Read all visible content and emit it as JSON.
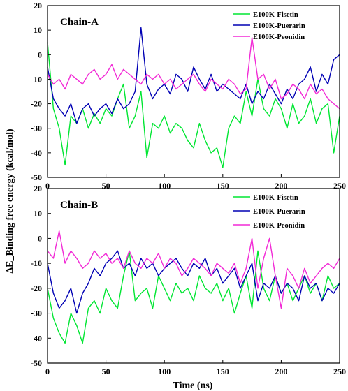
{
  "figure": {
    "ylabel": "ΔE_Binding free energy (kcal/mol)",
    "xlabel": "Time (ns)"
  },
  "chart_data": [
    {
      "type": "line",
      "panel_label": "Chain-A",
      "xlim": [
        0,
        250
      ],
      "ylim": [
        -50,
        20
      ],
      "x_ticks": [
        "0",
        "50",
        "100",
        "150",
        "200",
        "250"
      ],
      "y_ticks": [
        "-50",
        "-40",
        "-30",
        "-20",
        "-10",
        "0",
        "10",
        "20"
      ],
      "legend_position": "top-right",
      "series": [
        {
          "name": "E100K-Fisetin",
          "color": "#00e632",
          "x": [
            0,
            5,
            10,
            15,
            20,
            25,
            30,
            35,
            40,
            45,
            50,
            55,
            60,
            65,
            70,
            75,
            80,
            85,
            90,
            95,
            100,
            105,
            110,
            115,
            120,
            125,
            130,
            135,
            140,
            145,
            150,
            155,
            160,
            165,
            170,
            175,
            180,
            185,
            190,
            195,
            200,
            205,
            210,
            215,
            220,
            225,
            230,
            235,
            240,
            245,
            250
          ],
          "values": [
            5,
            -22,
            -30,
            -45,
            -25,
            -28,
            -22,
            -30,
            -24,
            -28,
            -22,
            -25,
            -18,
            -12,
            -30,
            -25,
            -15,
            -42,
            -28,
            -30,
            -25,
            -32,
            -28,
            -30,
            -35,
            -38,
            -28,
            -35,
            -40,
            -38,
            -46,
            -30,
            -25,
            -28,
            -15,
            -25,
            -10,
            -22,
            -25,
            -18,
            -22,
            -30,
            -20,
            -28,
            -25,
            -18,
            -28,
            -22,
            -20,
            -40,
            -25
          ]
        },
        {
          "name": "E100K-Puerarin",
          "color": "#0000b4",
          "x": [
            0,
            5,
            10,
            15,
            20,
            25,
            30,
            35,
            40,
            45,
            50,
            55,
            60,
            65,
            70,
            75,
            80,
            85,
            90,
            95,
            100,
            105,
            110,
            115,
            120,
            125,
            130,
            135,
            140,
            145,
            150,
            155,
            160,
            165,
            170,
            175,
            180,
            185,
            190,
            195,
            200,
            205,
            210,
            215,
            220,
            225,
            230,
            235,
            240,
            245,
            250
          ],
          "values": [
            -5,
            -18,
            -22,
            -25,
            -20,
            -28,
            -22,
            -20,
            -25,
            -22,
            -20,
            -24,
            -18,
            -22,
            -20,
            -15,
            11,
            -12,
            -18,
            -14,
            -12,
            -16,
            -8,
            -10,
            -15,
            -5,
            -10,
            -14,
            -8,
            -15,
            -12,
            -14,
            -16,
            -18,
            -12,
            -20,
            -15,
            -18,
            -12,
            -16,
            -20,
            -14,
            -18,
            -12,
            -10,
            -5,
            -15,
            -8,
            -12,
            -2,
            0
          ]
        },
        {
          "name": "E100K-Peonidin",
          "color": "#f22ad6",
          "x": [
            0,
            5,
            10,
            15,
            20,
            25,
            30,
            35,
            40,
            45,
            50,
            55,
            60,
            65,
            70,
            75,
            80,
            85,
            90,
            95,
            100,
            105,
            110,
            115,
            120,
            125,
            130,
            135,
            140,
            145,
            150,
            155,
            160,
            165,
            170,
            175,
            180,
            185,
            190,
            195,
            200,
            205,
            210,
            215,
            220,
            225,
            230,
            235,
            240,
            245,
            250
          ],
          "values": [
            -8,
            -12,
            -10,
            -14,
            -8,
            -10,
            -12,
            -8,
            -6,
            -10,
            -8,
            -4,
            -10,
            -6,
            -8,
            -10,
            -12,
            -8,
            -10,
            -8,
            -12,
            -10,
            -14,
            -12,
            -10,
            -8,
            -12,
            -15,
            -10,
            -12,
            -14,
            -10,
            -12,
            -16,
            -14,
            7,
            -10,
            -8,
            -14,
            -10,
            -18,
            -16,
            -12,
            -14,
            -18,
            -12,
            -16,
            -14,
            -18,
            -20,
            -22
          ]
        }
      ]
    },
    {
      "type": "line",
      "panel_label": "Chain-B",
      "xlim": [
        0,
        250
      ],
      "ylim": [
        -50,
        20
      ],
      "x_ticks": [
        "0",
        "50",
        "100",
        "150",
        "200",
        "250"
      ],
      "y_ticks": [
        "-50",
        "-40",
        "-30",
        "-20",
        "-10",
        "0",
        "10",
        "20"
      ],
      "legend_position": "top-right",
      "series": [
        {
          "name": "E100K-Fisetin",
          "color": "#00e632",
          "x": [
            0,
            5,
            10,
            15,
            20,
            25,
            30,
            35,
            40,
            45,
            50,
            55,
            60,
            65,
            70,
            75,
            80,
            85,
            90,
            95,
            100,
            105,
            110,
            115,
            120,
            125,
            130,
            135,
            140,
            145,
            150,
            155,
            160,
            165,
            170,
            175,
            180,
            185,
            190,
            195,
            200,
            205,
            210,
            215,
            220,
            225,
            230,
            235,
            240,
            245,
            250
          ],
          "values": [
            -20,
            -32,
            -38,
            -42,
            -30,
            -35,
            -42,
            -28,
            -25,
            -30,
            -20,
            -25,
            -28,
            -15,
            -5,
            -25,
            -22,
            -20,
            -28,
            -15,
            -20,
            -25,
            -18,
            -22,
            -20,
            -25,
            -15,
            -20,
            -22,
            -18,
            -25,
            -20,
            -30,
            -22,
            -15,
            -28,
            -5,
            -20,
            -25,
            -15,
            -22,
            -18,
            -25,
            -20,
            -15,
            -22,
            -18,
            -25,
            -15,
            -20,
            -18
          ]
        },
        {
          "name": "E100K-Puerarin",
          "color": "#0000b4",
          "x": [
            0,
            5,
            10,
            15,
            20,
            25,
            30,
            35,
            40,
            45,
            50,
            55,
            60,
            65,
            70,
            75,
            80,
            85,
            90,
            95,
            100,
            105,
            110,
            115,
            120,
            125,
            130,
            135,
            140,
            145,
            150,
            155,
            160,
            165,
            170,
            175,
            180,
            185,
            190,
            195,
            200,
            205,
            210,
            215,
            220,
            225,
            230,
            235,
            240,
            245,
            250
          ],
          "values": [
            -10,
            -22,
            -28,
            -25,
            -20,
            -30,
            -22,
            -18,
            -12,
            -15,
            -10,
            -8,
            -5,
            -12,
            -10,
            -15,
            -8,
            -12,
            -10,
            -15,
            -12,
            -10,
            -8,
            -12,
            -15,
            -10,
            -12,
            -8,
            -15,
            -12,
            -18,
            -15,
            -12,
            -20,
            -15,
            -10,
            -25,
            -18,
            -20,
            -15,
            -22,
            -18,
            -20,
            -25,
            -15,
            -20,
            -18,
            -25,
            -20,
            -22,
            -18
          ]
        },
        {
          "name": "E100K-Peonidin",
          "color": "#f22ad6",
          "x": [
            0,
            5,
            10,
            15,
            20,
            25,
            30,
            35,
            40,
            45,
            50,
            55,
            60,
            65,
            70,
            75,
            80,
            85,
            90,
            95,
            100,
            105,
            110,
            115,
            120,
            125,
            130,
            135,
            140,
            145,
            150,
            155,
            160,
            165,
            170,
            175,
            180,
            185,
            190,
            195,
            200,
            205,
            210,
            215,
            220,
            225,
            230,
            235,
            240,
            245,
            250
          ],
          "values": [
            -5,
            -8,
            3,
            -10,
            -5,
            -8,
            -12,
            -10,
            -5,
            -8,
            -6,
            -10,
            -8,
            -12,
            -5,
            -10,
            -12,
            -8,
            -10,
            -6,
            -12,
            -8,
            -10,
            -15,
            -12,
            -8,
            -10,
            -12,
            -15,
            -10,
            -12,
            -14,
            -10,
            -18,
            -12,
            0,
            -20,
            -8,
            0,
            -15,
            -28,
            -12,
            -15,
            -20,
            -12,
            -18,
            -15,
            -12,
            -10,
            -12,
            -8
          ]
        }
      ]
    }
  ]
}
